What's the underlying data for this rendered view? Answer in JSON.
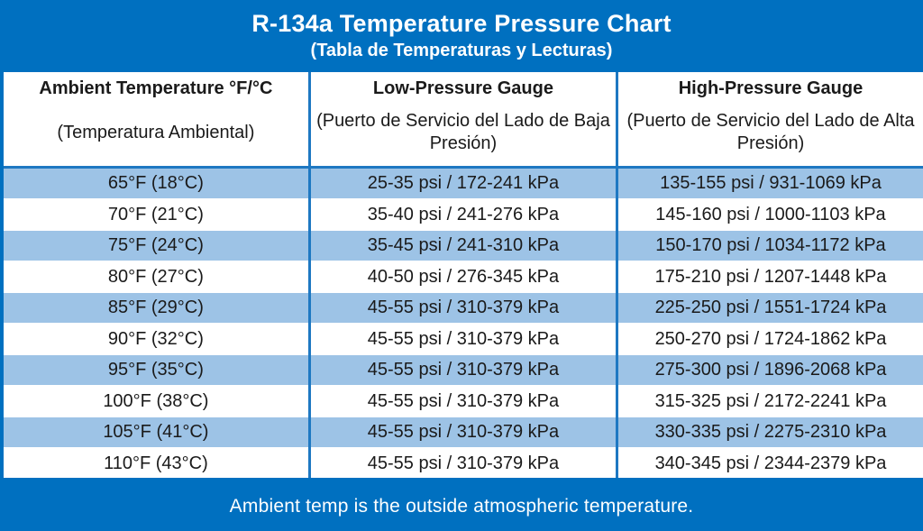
{
  "chart_data": {
    "type": "table",
    "title": "R-134a Temperature Pressure Chart",
    "subtitle": "(Tabla de Temperaturas y Lecturas)",
    "columns": [
      {
        "label": "Ambient Temperature °F/°C",
        "sublabel": "(Temperatura Ambiental)"
      },
      {
        "label": "Low-Pressure Gauge",
        "sublabel": "(Puerto de Servicio del Lado de Baja Presión)"
      },
      {
        "label": "High-Pressure Gauge",
        "sublabel": "(Puerto de Servicio del Lado de Alta Presión)"
      }
    ],
    "rows": [
      [
        "65°F (18°C)",
        "25-35 psi / 172-241 kPa",
        "135-155 psi / 931-1069 kPa"
      ],
      [
        "70°F (21°C)",
        "35-40 psi / 241-276 kPa",
        "145-160 psi / 1000-1103 kPa"
      ],
      [
        "75°F (24°C)",
        "35-45 psi / 241-310 kPa",
        "150-170 psi / 1034-1172 kPa"
      ],
      [
        "80°F (27°C)",
        "40-50 psi / 276-345 kPa",
        "175-210 psi / 1207-1448 kPa"
      ],
      [
        "85°F (29°C)",
        "45-55 psi / 310-379 kPa",
        "225-250 psi / 1551-1724 kPa"
      ],
      [
        "90°F (32°C)",
        "45-55 psi / 310-379 kPa",
        "250-270 psi / 1724-1862 kPa"
      ],
      [
        "95°F (35°C)",
        "45-55 psi / 310-379 kPa",
        "275-300 psi / 1896-2068 kPa"
      ],
      [
        "100°F (38°C)",
        "45-55 psi / 310-379 kPa",
        "315-325 psi / 2172-2241 kPa"
      ],
      [
        "105°F (41°C)",
        "45-55 psi / 310-379 kPa",
        "330-335 psi / 2275-2310 kPa"
      ],
      [
        "110°F (43°C)",
        "45-55 psi / 310-379 kPa",
        "340-345 psi / 2344-2379 kPa"
      ]
    ],
    "footer_note": "Ambient temp is the outside atmospheric temperature.",
    "colors": {
      "banner_blue": "#0070C0",
      "grid_blue": "#1E78C2",
      "row_alt_blue": "#9DC3E6",
      "row_white": "#FFFFFF",
      "text_dark": "#1A1A1A",
      "text_white": "#FFFFFF"
    },
    "layout": {
      "striping": "alternating rows, first data row shaded blue",
      "grid": "blue vertical column borders, white horizontal row separators, blue outer frame",
      "legend": "none"
    }
  }
}
